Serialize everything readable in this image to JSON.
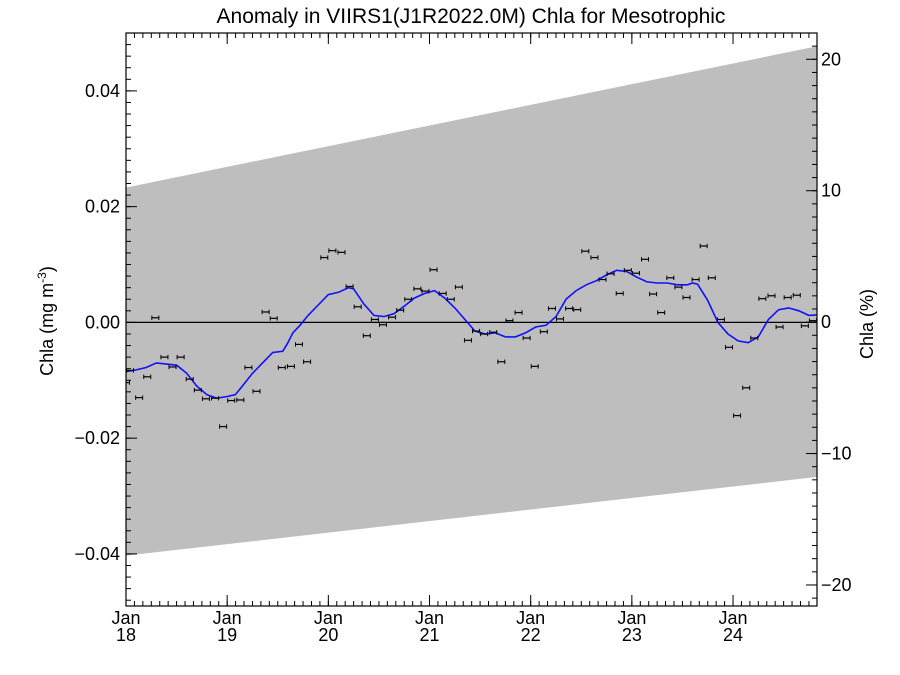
{
  "chart_data": {
    "type": "scatter",
    "title": "Anomaly in VIIRS1(J1R2022.0M) Chla for Mesotrophic",
    "ylabel_main": "Chla (mg m",
    "ylabel_sup": "-3",
    "ylabel_close": ")",
    "ylabel_right": "Chla (%)",
    "xlim": [
      2018.0,
      2024.83
    ],
    "ylim": [
      -0.049,
      0.05
    ],
    "ylim_right": [
      -21.6,
      22.0
    ],
    "grid": false,
    "x_ticks": [
      {
        "x": 2018.0,
        "month": "Jan",
        "year": "18"
      },
      {
        "x": 2019.0,
        "month": "Jan",
        "year": "19"
      },
      {
        "x": 2020.0,
        "month": "Jan",
        "year": "20"
      },
      {
        "x": 2021.0,
        "month": "Jan",
        "year": "21"
      },
      {
        "x": 2022.0,
        "month": "Jan",
        "year": "22"
      },
      {
        "x": 2023.0,
        "month": "Jan",
        "year": "23"
      },
      {
        "x": 2024.0,
        "month": "Jan",
        "year": "24"
      }
    ],
    "y_ticks_left": [
      {
        "v": 0.04,
        "label": "0.04"
      },
      {
        "v": 0.02,
        "label": "0.02"
      },
      {
        "v": 0.0,
        "label": "0.00"
      },
      {
        "v": -0.02,
        "label": "−0.02"
      },
      {
        "v": -0.04,
        "label": "−0.04"
      }
    ],
    "y_ticks_right": [
      {
        "v": 20,
        "label": "20"
      },
      {
        "v": 10,
        "label": "10"
      },
      {
        "v": 0,
        "label": "0"
      },
      {
        "v": -10,
        "label": "−10"
      },
      {
        "v": -20,
        "label": "−20"
      }
    ],
    "band": {
      "upper": [
        [
          2018.0,
          0.0233
        ],
        [
          2024.83,
          0.0477
        ]
      ],
      "lower": [
        [
          2018.0,
          -0.0403
        ],
        [
          2024.83,
          -0.0267
        ]
      ],
      "color": "#bebebe"
    },
    "zero_line": 0.0,
    "monthly_anomaly": {
      "color": "#000000",
      "points": [
        [
          2018.0,
          -0.0104
        ],
        [
          2018.04,
          -0.0083
        ],
        [
          2018.13,
          -0.013
        ],
        [
          2018.21,
          -0.0094
        ],
        [
          2018.29,
          0.0008
        ],
        [
          2018.38,
          -0.006
        ],
        [
          2018.46,
          -0.0077
        ],
        [
          2018.54,
          -0.006
        ],
        [
          2018.63,
          -0.0098
        ],
        [
          2018.71,
          -0.0117
        ],
        [
          2018.79,
          -0.0132
        ],
        [
          2018.88,
          -0.0131
        ],
        [
          2018.96,
          -0.018
        ],
        [
          2019.04,
          -0.0135
        ],
        [
          2019.13,
          -0.0134
        ],
        [
          2019.21,
          -0.0078
        ],
        [
          2019.29,
          -0.0119
        ],
        [
          2019.38,
          0.0018
        ],
        [
          2019.46,
          0.0007
        ],
        [
          2019.54,
          -0.0078
        ],
        [
          2019.63,
          -0.0076
        ],
        [
          2019.71,
          -0.0038
        ],
        [
          2019.79,
          -0.0068
        ],
        [
          2019.96,
          0.0112
        ],
        [
          2020.04,
          0.0124
        ],
        [
          2020.13,
          0.0121
        ],
        [
          2020.21,
          0.0062
        ],
        [
          2020.29,
          0.0027
        ],
        [
          2020.38,
          -0.0023
        ],
        [
          2020.46,
          0.0005
        ],
        [
          2020.54,
          -0.0004
        ],
        [
          2020.63,
          0.0009
        ],
        [
          2020.71,
          0.0021
        ],
        [
          2020.79,
          0.004
        ],
        [
          2020.88,
          0.0058
        ],
        [
          2020.96,
          0.0054
        ],
        [
          2021.04,
          0.0091
        ],
        [
          2021.13,
          0.005
        ],
        [
          2021.21,
          0.004
        ],
        [
          2021.29,
          0.0061
        ],
        [
          2021.38,
          -0.0031
        ],
        [
          2021.46,
          -0.0015
        ],
        [
          2021.54,
          -0.002
        ],
        [
          2021.63,
          -0.0017
        ],
        [
          2021.71,
          -0.0068
        ],
        [
          2021.79,
          0.0003
        ],
        [
          2021.88,
          0.0017
        ],
        [
          2021.96,
          -0.0027
        ],
        [
          2022.04,
          -0.0076
        ],
        [
          2022.13,
          -0.0016
        ],
        [
          2022.21,
          0.0024
        ],
        [
          2022.29,
          0.0006
        ],
        [
          2022.38,
          0.0024
        ],
        [
          2022.46,
          0.0022
        ],
        [
          2022.54,
          0.0123
        ],
        [
          2022.63,
          0.0112
        ],
        [
          2022.71,
          0.0074
        ],
        [
          2022.79,
          0.0084
        ],
        [
          2022.88,
          0.005
        ],
        [
          2022.96,
          0.009
        ],
        [
          2023.04,
          0.0085
        ],
        [
          2023.13,
          0.0109
        ],
        [
          2023.21,
          0.0049
        ],
        [
          2023.29,
          0.0017
        ],
        [
          2023.38,
          0.0077
        ],
        [
          2023.46,
          0.0061
        ],
        [
          2023.54,
          0.0043
        ],
        [
          2023.63,
          0.0074
        ],
        [
          2023.71,
          0.0132
        ],
        [
          2023.79,
          0.0077
        ],
        [
          2023.88,
          0.0005
        ],
        [
          2023.96,
          -0.0043
        ],
        [
          2024.04,
          -0.0161
        ],
        [
          2024.13,
          -0.0113
        ],
        [
          2024.21,
          -0.0027
        ],
        [
          2024.29,
          0.0041
        ],
        [
          2024.38,
          0.0046
        ],
        [
          2024.46,
          -0.0008
        ],
        [
          2024.54,
          0.0043
        ],
        [
          2024.63,
          0.0047
        ],
        [
          2024.71,
          -0.0006
        ],
        [
          2024.79,
          0.0003
        ]
      ]
    },
    "running_mean": {
      "color": "#1010ff",
      "points": [
        [
          2018.0,
          -0.0085
        ],
        [
          2018.1,
          -0.0082
        ],
        [
          2018.2,
          -0.0078
        ],
        [
          2018.3,
          -0.007
        ],
        [
          2018.4,
          -0.0072
        ],
        [
          2018.5,
          -0.0074
        ],
        [
          2018.6,
          -0.0088
        ],
        [
          2018.7,
          -0.011
        ],
        [
          2018.8,
          -0.0125
        ],
        [
          2018.9,
          -0.0131
        ],
        [
          2019.0,
          -0.0128
        ],
        [
          2019.08,
          -0.0125
        ],
        [
          2019.15,
          -0.011
        ],
        [
          2019.25,
          -0.0088
        ],
        [
          2019.35,
          -0.007
        ],
        [
          2019.45,
          -0.0052
        ],
        [
          2019.55,
          -0.005
        ],
        [
          2019.6,
          -0.0035
        ],
        [
          2019.65,
          -0.0018
        ],
        [
          2019.72,
          -0.0005
        ],
        [
          2019.8,
          0.0012
        ],
        [
          2019.9,
          0.003
        ],
        [
          2020.0,
          0.0048
        ],
        [
          2020.1,
          0.0052
        ],
        [
          2020.2,
          0.006
        ],
        [
          2020.25,
          0.0058
        ],
        [
          2020.35,
          0.0032
        ],
        [
          2020.45,
          0.0012
        ],
        [
          2020.55,
          0.001
        ],
        [
          2020.65,
          0.0015
        ],
        [
          2020.75,
          0.0028
        ],
        [
          2020.85,
          0.0042
        ],
        [
          2020.95,
          0.005
        ],
        [
          2021.05,
          0.0055
        ],
        [
          2021.15,
          0.0042
        ],
        [
          2021.25,
          0.0025
        ],
        [
          2021.35,
          0.0005
        ],
        [
          2021.45,
          -0.0015
        ],
        [
          2021.55,
          -0.002
        ],
        [
          2021.65,
          -0.0018
        ],
        [
          2021.75,
          -0.0025
        ],
        [
          2021.85,
          -0.0025
        ],
        [
          2021.95,
          -0.0018
        ],
        [
          2022.05,
          -0.0008
        ],
        [
          2022.15,
          -0.0005
        ],
        [
          2022.25,
          0.001
        ],
        [
          2022.35,
          0.004
        ],
        [
          2022.45,
          0.0055
        ],
        [
          2022.55,
          0.0065
        ],
        [
          2022.65,
          0.0072
        ],
        [
          2022.75,
          0.0082
        ],
        [
          2022.85,
          0.009
        ],
        [
          2022.95,
          0.0088
        ],
        [
          2023.05,
          0.0078
        ],
        [
          2023.15,
          0.007
        ],
        [
          2023.25,
          0.0068
        ],
        [
          2023.35,
          0.0068
        ],
        [
          2023.45,
          0.0065
        ],
        [
          2023.55,
          0.0065
        ],
        [
          2023.6,
          0.0068
        ],
        [
          2023.65,
          0.0066
        ],
        [
          2023.75,
          0.0038
        ],
        [
          2023.85,
          0.0
        ],
        [
          2023.95,
          -0.002
        ],
        [
          2024.05,
          -0.0032
        ],
        [
          2024.15,
          -0.0035
        ],
        [
          2024.25,
          -0.0025
        ],
        [
          2024.35,
          0.0005
        ],
        [
          2024.45,
          0.0022
        ],
        [
          2024.55,
          0.0025
        ],
        [
          2024.65,
          0.002
        ],
        [
          2024.75,
          0.0012
        ],
        [
          2024.83,
          0.0013
        ]
      ]
    }
  }
}
